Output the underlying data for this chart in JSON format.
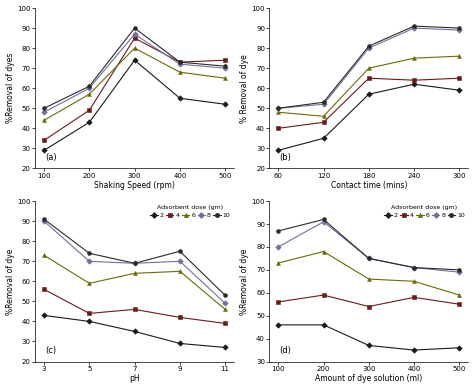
{
  "panel_a": {
    "xlabel": "Shaking Speed (rpm)",
    "ylabel": "%Removal of dyes",
    "label": "(a)",
    "x": [
      100,
      200,
      300,
      400,
      500
    ],
    "series": {
      "2": [
        29,
        43,
        74,
        55,
        52
      ],
      "4": [
        34,
        49,
        85,
        73,
        74
      ],
      "6": [
        44,
        57,
        80,
        68,
        65
      ],
      "8": [
        48,
        60,
        87,
        72,
        70
      ],
      "10": [
        50,
        61,
        90,
        73,
        71
      ]
    },
    "ylim": [
      20,
      100
    ],
    "yticks": [
      20,
      30,
      40,
      50,
      60,
      70,
      80,
      90,
      100
    ]
  },
  "panel_b": {
    "xlabel": "Contact time (mins)",
    "ylabel": "% Removal of dye",
    "label": "(b)",
    "x": [
      60,
      120,
      180,
      240,
      300
    ],
    "series": {
      "2": [
        29,
        35,
        57,
        62,
        59
      ],
      "4": [
        40,
        43,
        65,
        64,
        65
      ],
      "6": [
        48,
        46,
        70,
        75,
        76
      ],
      "8": [
        50,
        52,
        80,
        90,
        89
      ],
      "10": [
        50,
        53,
        81,
        91,
        90
      ]
    },
    "ylim": [
      20,
      100
    ],
    "yticks": [
      20,
      30,
      40,
      50,
      60,
      70,
      80,
      90,
      100
    ]
  },
  "panel_c": {
    "xlabel": "pH",
    "ylabel": "%Removal of dye",
    "label": "(c)",
    "x": [
      3,
      5,
      7,
      9,
      11
    ],
    "series": {
      "2": [
        43,
        40,
        35,
        29,
        27
      ],
      "4": [
        56,
        44,
        46,
        42,
        39
      ],
      "6": [
        73,
        59,
        64,
        65,
        46
      ],
      "8": [
        90,
        70,
        69,
        70,
        49
      ],
      "10": [
        91,
        74,
        69,
        75,
        53
      ]
    },
    "ylim": [
      20,
      100
    ],
    "yticks": [
      20,
      30,
      40,
      50,
      60,
      70,
      80,
      90,
      100
    ]
  },
  "panel_d": {
    "xlabel": "Amount of dye solution (ml)",
    "ylabel": "%Removal of dye",
    "label": "(d)",
    "x": [
      100,
      200,
      300,
      400,
      500
    ],
    "series": {
      "2": [
        46,
        46,
        37,
        35,
        36
      ],
      "4": [
        56,
        59,
        54,
        58,
        55
      ],
      "6": [
        73,
        78,
        66,
        65,
        59
      ],
      "8": [
        80,
        91,
        75,
        71,
        69
      ],
      "10": [
        87,
        92,
        75,
        71,
        70
      ]
    },
    "ylim": [
      30,
      100
    ],
    "yticks": [
      30,
      40,
      50,
      60,
      70,
      80,
      90,
      100
    ]
  },
  "series_styles": {
    "2": {
      "color": "#1a1a1a",
      "marker": "D",
      "linestyle": "-"
    },
    "4": {
      "color": "#6b1a1a",
      "marker": "s",
      "linestyle": "-"
    },
    "6": {
      "color": "#6b6b00",
      "marker": "^",
      "linestyle": "-"
    },
    "8": {
      "color": "#7070a0",
      "marker": "D",
      "linestyle": "-"
    },
    "10": {
      "color": "#2a2a2a",
      "marker": "o",
      "linestyle": "-"
    }
  },
  "legend_title": "Adsorbent dose (gm)",
  "doses": [
    "2",
    "4",
    "6",
    "8",
    "10"
  ]
}
